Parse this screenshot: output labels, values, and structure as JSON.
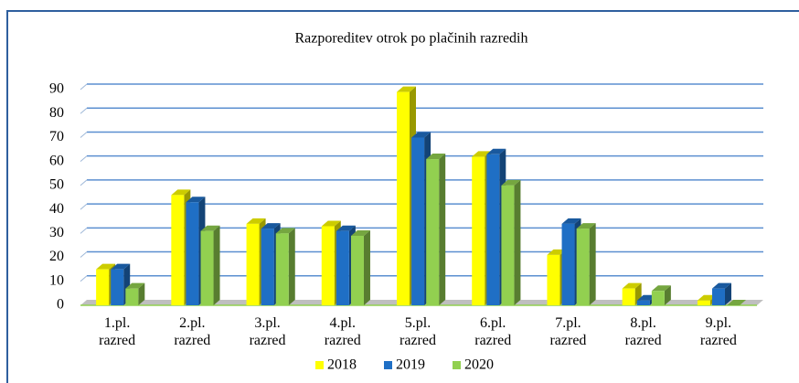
{
  "chart_data": {
    "type": "bar3d",
    "title": "Razporeditev otrok po plačinih razredih",
    "categories": [
      "1.pl. razred",
      "2.pl. razred",
      "3.pl. razred",
      "4.pl. razred",
      "5.pl. razred",
      "6.pl. razred",
      "7.pl. razred",
      "8.pl. razred",
      "9.pl. razred"
    ],
    "series": [
      {
        "name": "2018",
        "color": "#ffff00",
        "values": [
          15,
          46,
          34,
          33,
          89,
          62,
          21,
          7,
          2
        ]
      },
      {
        "name": "2019",
        "color": "#1f6fc5",
        "values": [
          15,
          43,
          32,
          31,
          70,
          63,
          34,
          2,
          7
        ]
      },
      {
        "name": "2020",
        "color": "#92d050",
        "values": [
          7,
          31,
          30,
          29,
          61,
          50,
          32,
          6,
          0
        ]
      }
    ],
    "ylim": [
      0,
      90
    ],
    "yticks": [
      0,
      10,
      20,
      30,
      40,
      50,
      60,
      70,
      80,
      90
    ],
    "grid": true,
    "legend": "bottom"
  }
}
